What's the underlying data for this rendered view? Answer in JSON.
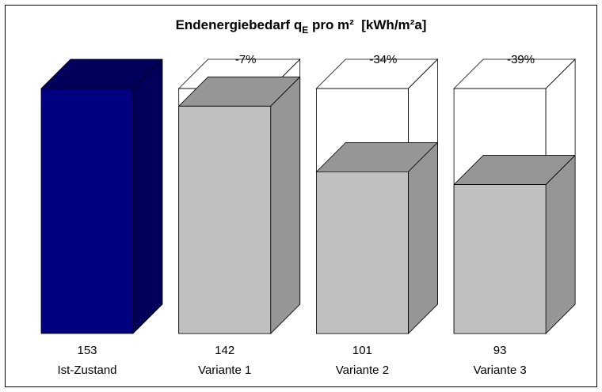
{
  "chart_data": {
    "type": "bar3d",
    "title": "Endenergiebedarf q",
    "title_subscript": "E",
    "title_suffix": " pro m²  [kWh/m²a]",
    "categories": [
      "Ist-Zustand",
      "Variante 1",
      "Variante 2",
      "Variante 3"
    ],
    "values": [
      153,
      142,
      101,
      93
    ],
    "annotations": [
      null,
      "-7%",
      "-34%",
      "-39%"
    ],
    "colors": [
      "#000080",
      "#c0c0c0",
      "#c0c0c0",
      "#c0c0c0"
    ],
    "shade_colors": [
      "#00005a",
      "#969696",
      "#969696",
      "#969696"
    ]
  }
}
